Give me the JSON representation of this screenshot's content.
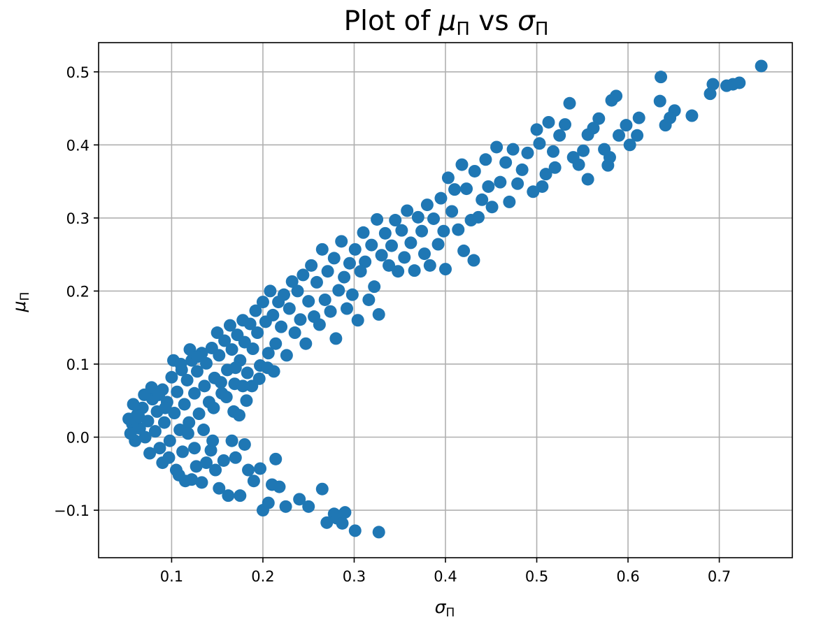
{
  "chart_data": {
    "type": "scatter",
    "title": {
      "prefix": "Plot of ",
      "sym1": "μ",
      "sub1": "Π",
      "mid": " vs ",
      "sym2": "σ",
      "sub2": "Π"
    },
    "xlabel": {
      "sym": "σ",
      "sub": "Π"
    },
    "ylabel": {
      "sym": "μ",
      "sub": "Π"
    },
    "xlim": [
      0.02,
      0.78
    ],
    "ylim": [
      -0.165,
      0.54
    ],
    "xticks": [
      0.1,
      0.2,
      0.3,
      0.4,
      0.5,
      0.6,
      0.7
    ],
    "xtick_labels": [
      "0.1",
      "0.2",
      "0.3",
      "0.4",
      "0.5",
      "0.6",
      "0.7"
    ],
    "yticks": [
      -0.1,
      0.0,
      0.1,
      0.2,
      0.3,
      0.4,
      0.5
    ],
    "ytick_labels": [
      "−0.1",
      "0.0",
      "0.1",
      "0.2",
      "0.3",
      "0.4",
      "0.5"
    ],
    "grid": true,
    "colors": {
      "marker": "#1f77b4"
    },
    "series": [
      {
        "points": [
          [
            0.746,
            0.508
          ],
          [
            0.722,
            0.485
          ],
          [
            0.715,
            0.483
          ],
          [
            0.708,
            0.481
          ],
          [
            0.693,
            0.483
          ],
          [
            0.69,
            0.47
          ],
          [
            0.67,
            0.44
          ],
          [
            0.651,
            0.447
          ],
          [
            0.646,
            0.437
          ],
          [
            0.641,
            0.427
          ],
          [
            0.636,
            0.493
          ],
          [
            0.635,
            0.46
          ],
          [
            0.612,
            0.437
          ],
          [
            0.61,
            0.413
          ],
          [
            0.602,
            0.4
          ],
          [
            0.598,
            0.427
          ],
          [
            0.59,
            0.413
          ],
          [
            0.587,
            0.467
          ],
          [
            0.582,
            0.461
          ],
          [
            0.58,
            0.383
          ],
          [
            0.578,
            0.372
          ],
          [
            0.574,
            0.394
          ],
          [
            0.568,
            0.436
          ],
          [
            0.562,
            0.423
          ],
          [
            0.556,
            0.414
          ],
          [
            0.556,
            0.353
          ],
          [
            0.551,
            0.392
          ],
          [
            0.546,
            0.373
          ],
          [
            0.54,
            0.383
          ],
          [
            0.536,
            0.457
          ],
          [
            0.531,
            0.428
          ],
          [
            0.525,
            0.413
          ],
          [
            0.52,
            0.369
          ],
          [
            0.518,
            0.391
          ],
          [
            0.513,
            0.431
          ],
          [
            0.51,
            0.36
          ],
          [
            0.506,
            0.343
          ],
          [
            0.503,
            0.402
          ],
          [
            0.5,
            0.421
          ],
          [
            0.496,
            0.336
          ],
          [
            0.49,
            0.389
          ],
          [
            0.484,
            0.366
          ],
          [
            0.479,
            0.347
          ],
          [
            0.474,
            0.394
          ],
          [
            0.47,
            0.322
          ],
          [
            0.466,
            0.376
          ],
          [
            0.46,
            0.349
          ],
          [
            0.456,
            0.397
          ],
          [
            0.451,
            0.315
          ],
          [
            0.447,
            0.343
          ],
          [
            0.444,
            0.38
          ],
          [
            0.44,
            0.325
          ],
          [
            0.436,
            0.301
          ],
          [
            0.432,
            0.364
          ],
          [
            0.431,
            0.242
          ],
          [
            0.428,
            0.297
          ],
          [
            0.423,
            0.34
          ],
          [
            0.42,
            0.255
          ],
          [
            0.418,
            0.373
          ],
          [
            0.414,
            0.284
          ],
          [
            0.41,
            0.339
          ],
          [
            0.407,
            0.309
          ],
          [
            0.403,
            0.355
          ],
          [
            0.4,
            0.23
          ],
          [
            0.398,
            0.282
          ],
          [
            0.395,
            0.327
          ],
          [
            0.392,
            0.264
          ],
          [
            0.387,
            0.299
          ],
          [
            0.383,
            0.235
          ],
          [
            0.38,
            0.318
          ],
          [
            0.377,
            0.251
          ],
          [
            0.374,
            0.282
          ],
          [
            0.37,
            0.301
          ],
          [
            0.366,
            0.228
          ],
          [
            0.362,
            0.266
          ],
          [
            0.358,
            0.31
          ],
          [
            0.355,
            0.246
          ],
          [
            0.352,
            0.283
          ],
          [
            0.348,
            0.227
          ],
          [
            0.345,
            0.297
          ],
          [
            0.341,
            0.262
          ],
          [
            0.338,
            0.235
          ],
          [
            0.334,
            0.279
          ],
          [
            0.33,
            0.249
          ],
          [
            0.327,
            0.168
          ],
          [
            0.325,
            0.298
          ],
          [
            0.322,
            0.206
          ],
          [
            0.319,
            0.263
          ],
          [
            0.316,
            0.188
          ],
          [
            0.312,
            0.24
          ],
          [
            0.31,
            0.28
          ],
          [
            0.307,
            0.227
          ],
          [
            0.304,
            0.16
          ],
          [
            0.301,
            0.257
          ],
          [
            0.298,
            0.195
          ],
          [
            0.295,
            0.238
          ],
          [
            0.292,
            0.176
          ],
          [
            0.289,
            0.219
          ],
          [
            0.286,
            0.268
          ],
          [
            0.283,
            0.201
          ],
          [
            0.28,
            0.135
          ],
          [
            0.278,
            0.245
          ],
          [
            0.274,
            0.172
          ],
          [
            0.271,
            0.227
          ],
          [
            0.268,
            0.188
          ],
          [
            0.265,
            0.257
          ],
          [
            0.262,
            0.154
          ],
          [
            0.259,
            0.212
          ],
          [
            0.256,
            0.165
          ],
          [
            0.253,
            0.235
          ],
          [
            0.25,
            0.186
          ],
          [
            0.247,
            0.128
          ],
          [
            0.244,
            0.222
          ],
          [
            0.241,
            0.161
          ],
          [
            0.238,
            0.2
          ],
          [
            0.235,
            0.143
          ],
          [
            0.232,
            0.213
          ],
          [
            0.229,
            0.176
          ],
          [
            0.226,
            0.112
          ],
          [
            0.223,
            0.195
          ],
          [
            0.22,
            0.151
          ],
          [
            0.217,
            0.185
          ],
          [
            0.214,
            0.128
          ],
          [
            0.211,
            0.167
          ],
          [
            0.208,
            0.2
          ],
          [
            0.206,
            0.115
          ],
          [
            0.203,
            0.158
          ],
          [
            0.2,
            0.185
          ],
          [
            0.197,
            0.098
          ],
          [
            0.194,
            0.143
          ],
          [
            0.192,
            0.173
          ],
          [
            0.189,
            0.121
          ],
          [
            0.186,
            0.155
          ],
          [
            0.183,
            0.088
          ],
          [
            0.18,
            0.13
          ],
          [
            0.178,
            0.16
          ],
          [
            0.175,
            0.105
          ],
          [
            0.172,
            0.14
          ],
          [
            0.169,
            0.073
          ],
          [
            0.166,
            0.12
          ],
          [
            0.164,
            0.153
          ],
          [
            0.161,
            0.092
          ],
          [
            0.158,
            0.132
          ],
          [
            0.155,
            0.06
          ],
          [
            0.152,
            0.112
          ],
          [
            0.15,
            0.143
          ],
          [
            0.147,
            0.081
          ],
          [
            0.144,
            0.122
          ],
          [
            0.141,
            0.048
          ],
          [
            0.138,
            0.101
          ],
          [
            0.136,
            0.07
          ],
          [
            0.133,
            0.115
          ],
          [
            0.13,
            0.032
          ],
          [
            0.128,
            0.09
          ],
          [
            0.125,
            0.06
          ],
          [
            0.122,
            0.105
          ],
          [
            0.119,
            0.02
          ],
          [
            0.117,
            0.078
          ],
          [
            0.114,
            0.045
          ],
          [
            0.111,
            0.092
          ],
          [
            0.109,
            0.01
          ],
          [
            0.106,
            0.062
          ],
          [
            0.103,
            0.033
          ],
          [
            0.1,
            0.082
          ],
          [
            0.098,
            -0.005
          ],
          [
            0.095,
            0.048
          ],
          [
            0.092,
            0.02
          ],
          [
            0.09,
            0.065
          ],
          [
            0.087,
            -0.015
          ],
          [
            0.084,
            0.035
          ],
          [
            0.082,
            0.008
          ],
          [
            0.079,
            0.052
          ],
          [
            0.076,
            -0.022
          ],
          [
            0.074,
            0.022
          ],
          [
            0.071,
            0.0
          ],
          [
            0.068,
            0.04
          ],
          [
            0.065,
            0.012
          ],
          [
            0.062,
            0.03
          ],
          [
            0.06,
            -0.005
          ],
          [
            0.057,
            0.018
          ],
          [
            0.055,
            0.005
          ],
          [
            0.053,
            0.025
          ],
          [
            0.058,
            0.045
          ],
          [
            0.064,
            0.028
          ],
          [
            0.07,
            0.058
          ],
          [
            0.078,
            0.068
          ],
          [
            0.086,
            0.058
          ],
          [
            0.093,
            0.04
          ],
          [
            0.102,
            0.105
          ],
          [
            0.11,
            0.1
          ],
          [
            0.12,
            0.12
          ],
          [
            0.128,
            0.11
          ],
          [
            0.09,
            -0.035
          ],
          [
            0.097,
            -0.028
          ],
          [
            0.105,
            -0.045
          ],
          [
            0.108,
            -0.052
          ],
          [
            0.115,
            -0.06
          ],
          [
            0.122,
            -0.058
          ],
          [
            0.127,
            -0.04
          ],
          [
            0.133,
            -0.062
          ],
          [
            0.138,
            -0.035
          ],
          [
            0.143,
            -0.018
          ],
          [
            0.148,
            -0.045
          ],
          [
            0.152,
            -0.07
          ],
          [
            0.157,
            -0.032
          ],
          [
            0.162,
            -0.08
          ],
          [
            0.166,
            -0.005
          ],
          [
            0.17,
            -0.028
          ],
          [
            0.175,
            -0.08
          ],
          [
            0.18,
            -0.01
          ],
          [
            0.184,
            -0.045
          ],
          [
            0.19,
            -0.06
          ],
          [
            0.197,
            -0.043
          ],
          [
            0.2,
            -0.1
          ],
          [
            0.206,
            -0.09
          ],
          [
            0.21,
            -0.065
          ],
          [
            0.214,
            -0.03
          ],
          [
            0.218,
            -0.068
          ],
          [
            0.225,
            -0.095
          ],
          [
            0.24,
            -0.085
          ],
          [
            0.25,
            -0.095
          ],
          [
            0.265,
            -0.071
          ],
          [
            0.27,
            -0.117
          ],
          [
            0.278,
            -0.105
          ],
          [
            0.281,
            -0.111
          ],
          [
            0.287,
            -0.118
          ],
          [
            0.29,
            -0.103
          ],
          [
            0.301,
            -0.128
          ],
          [
            0.327,
            -0.13
          ],
          [
            0.145,
            -0.005
          ],
          [
            0.135,
            0.01
          ],
          [
            0.125,
            -0.015
          ],
          [
            0.118,
            0.005
          ],
          [
            0.112,
            -0.02
          ],
          [
            0.16,
            0.055
          ],
          [
            0.168,
            0.035
          ],
          [
            0.174,
            0.03
          ],
          [
            0.182,
            0.05
          ],
          [
            0.188,
            0.07
          ],
          [
            0.196,
            0.08
          ],
          [
            0.205,
            0.095
          ],
          [
            0.212,
            0.09
          ],
          [
            0.17,
            0.095
          ],
          [
            0.178,
            0.07
          ],
          [
            0.154,
            0.075
          ],
          [
            0.146,
            0.04
          ]
        ]
      }
    ]
  }
}
